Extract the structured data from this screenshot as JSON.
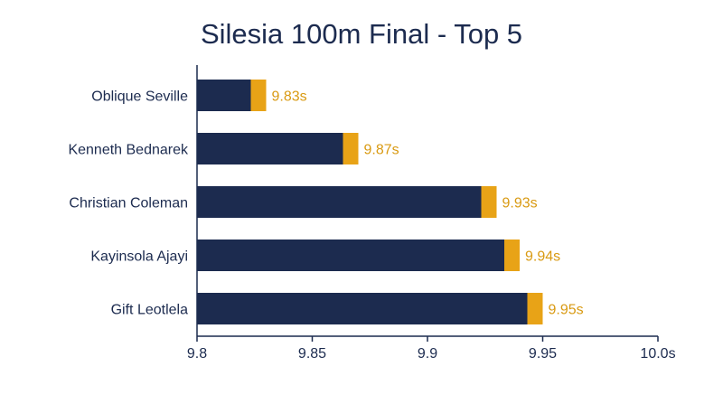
{
  "chart_data": {
    "type": "bar",
    "orientation": "horizontal",
    "title": "Silesia 100m Final - Top 5",
    "categories": [
      "Oblique Seville",
      "Kenneth Bednarek",
      "Christian Coleman",
      "Kayinsola Ajayi",
      "Gift Leotlela"
    ],
    "values": [
      9.83,
      9.87,
      9.93,
      9.94,
      9.95
    ],
    "data_labels": [
      "9.83s",
      "9.87s",
      "9.93s",
      "9.94s",
      "9.95s"
    ],
    "xlim": [
      9.8,
      10.0
    ],
    "x_ticks": [
      9.8,
      9.85,
      9.9,
      9.95,
      10.0
    ],
    "x_tick_labels": [
      "9.8",
      "9.85",
      "9.9",
      "9.95",
      "10.0s"
    ],
    "xlabel": "",
    "ylabel": "",
    "grid": false,
    "legend": "none",
    "colors": {
      "bar": "#1c2b4f",
      "bar_tip": "#e8a317",
      "data_label": "#d99a12",
      "axis": "#1c2b4f",
      "text": "#1c2b4f"
    }
  }
}
